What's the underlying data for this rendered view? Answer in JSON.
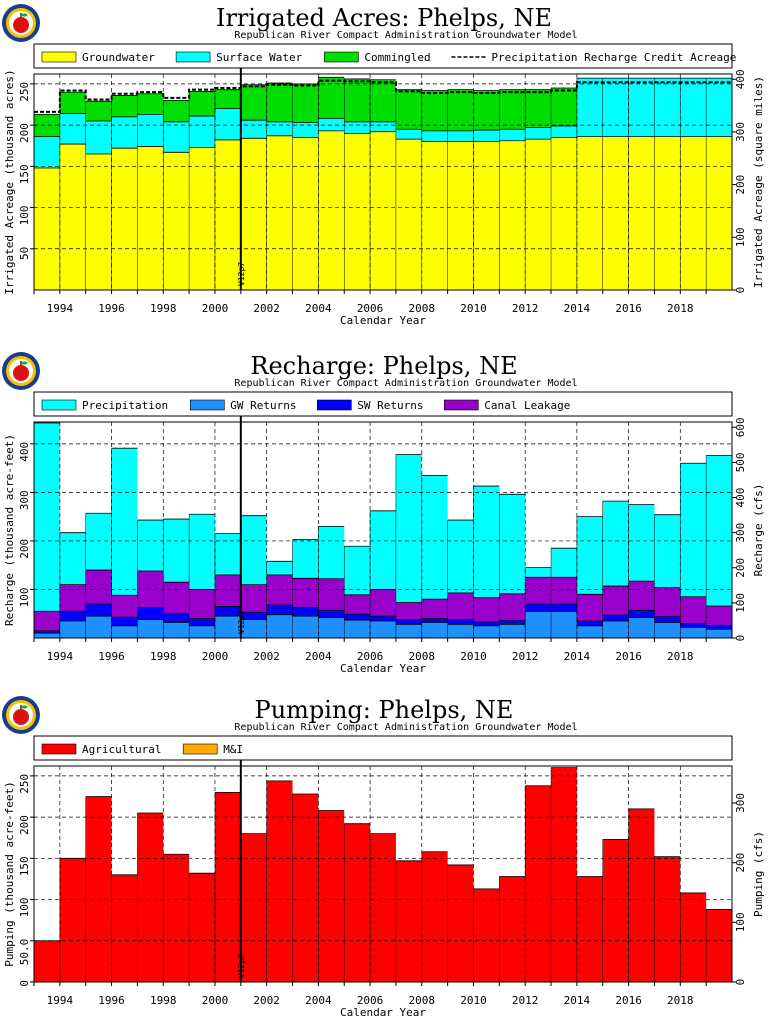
{
  "chart_data": [
    {
      "type": "area",
      "title": "Irrigated Acres: Phelps, NE",
      "subtitle": "Republican River Compact Administration Groundwater Model",
      "xlabel": "Calendar Year",
      "ylabel": "Irrigated Acreage (thousand acres)",
      "y2label": "Irrigated Acreage (square miles)",
      "xlim": [
        1992.5,
        2019.5
      ],
      "ylim": [
        0,
        262
      ],
      "y2lim": [
        0,
        410
      ],
      "yticks": [
        "50",
        "100",
        "150",
        "200",
        "250"
      ],
      "y2ticks": [
        "0",
        "100",
        "200",
        "300",
        "400"
      ],
      "xticks": [
        "1994",
        "1996",
        "1998",
        "2000",
        "2002",
        "2004",
        "2006",
        "2008",
        "2010",
        "2012",
        "2014",
        "2016",
        "2018"
      ],
      "legend_position": "top",
      "stacked": true,
      "years": [
        1993,
        1994,
        1995,
        1996,
        1997,
        1998,
        1999,
        2000,
        2001,
        2002,
        2003,
        2004,
        2005,
        2006,
        2007,
        2008,
        2009,
        2010,
        2011,
        2012,
        2013,
        2014,
        2015,
        2016,
        2017,
        2018,
        2019
      ],
      "series": [
        {
          "name": "Groundwater",
          "color": "#ffff00",
          "values": [
            148,
            177,
            165,
            172,
            174,
            167,
            173,
            182,
            184,
            187,
            185,
            193,
            190,
            192,
            183,
            180,
            180,
            180,
            181,
            183,
            185,
            186,
            186,
            186,
            186,
            186,
            186
          ]
        },
        {
          "name": "Surface Water",
          "color": "#00ffff",
          "values": [
            38,
            37,
            40,
            38,
            39,
            37,
            38,
            38,
            22,
            17,
            18,
            15,
            14,
            12,
            12,
            13,
            13,
            14,
            14,
            14,
            14,
            71,
            71,
            71,
            71,
            71,
            71
          ]
        },
        {
          "name": "Commingled",
          "color": "#00dd00",
          "values": [
            27,
            26,
            24,
            26,
            25,
            26,
            30,
            23,
            43,
            47,
            47,
            50,
            52,
            51,
            48,
            49,
            50,
            48,
            48,
            46,
            46,
            0,
            0,
            0,
            0,
            0,
            0
          ]
        }
      ],
      "reference_line": {
        "name": "Precipitation Recharge Credit Acreage",
        "style": "dashed",
        "values": [
          216,
          242,
          231,
          238,
          240,
          233,
          243,
          245,
          247,
          249,
          248,
          254,
          253,
          252,
          241,
          239,
          240,
          239,
          240,
          240,
          242,
          252,
          252,
          252,
          252,
          252,
          252
        ]
      },
      "marker": {
        "x": 2000.5,
        "label": "V12p7"
      }
    },
    {
      "type": "bar",
      "title": "Recharge: Phelps, NE",
      "subtitle": "Republican River Compact Administration Groundwater Model",
      "xlabel": "Calendar Year",
      "ylabel": "Recharge (thousand acre-feet)",
      "y2label": "Recharge (cfs)",
      "xlim": [
        1992.5,
        2019.5
      ],
      "ylim": [
        0,
        445
      ],
      "y2lim": [
        0,
        615
      ],
      "yticks": [
        "100",
        "200",
        "300",
        "400"
      ],
      "y2ticks": [
        "0",
        "100",
        "200",
        "300",
        "400",
        "500",
        "600"
      ],
      "xticks": [
        "1994",
        "1996",
        "1998",
        "2000",
        "2002",
        "2004",
        "2006",
        "2008",
        "2010",
        "2012",
        "2014",
        "2016",
        "2018"
      ],
      "legend_position": "top",
      "stacked": true,
      "years": [
        1993,
        1994,
        1995,
        1996,
        1997,
        1998,
        1999,
        2000,
        2001,
        2002,
        2003,
        2004,
        2005,
        2006,
        2007,
        2008,
        2009,
        2010,
        2011,
        2012,
        2013,
        2014,
        2015,
        2016,
        2017,
        2018,
        2019
      ],
      "series": [
        {
          "name": "GW Returns",
          "color": "#1e90ff",
          "values": [
            10,
            35,
            45,
            25,
            38,
            32,
            25,
            45,
            38,
            48,
            45,
            42,
            37,
            35,
            28,
            32,
            28,
            25,
            28,
            55,
            55,
            25,
            35,
            42,
            32,
            22,
            18
          ]
        },
        {
          "name": "SW Returns",
          "color": "#0000ff",
          "values": [
            5,
            20,
            25,
            18,
            25,
            18,
            15,
            20,
            15,
            20,
            18,
            15,
            12,
            10,
            10,
            8,
            10,
            8,
            8,
            15,
            15,
            10,
            12,
            15,
            12,
            8,
            8
          ]
        },
        {
          "name": "Canal Leakage",
          "color": "#9900cc",
          "values": [
            40,
            55,
            70,
            45,
            75,
            65,
            60,
            65,
            57,
            62,
            60,
            65,
            40,
            55,
            35,
            40,
            55,
            50,
            55,
            55,
            55,
            55,
            60,
            60,
            60,
            55,
            40
          ]
        },
        {
          "name": "Precipitation",
          "color": "#00ffff",
          "values": [
            388,
            107,
            117,
            303,
            105,
            130,
            155,
            85,
            142,
            28,
            80,
            108,
            100,
            162,
            305,
            255,
            150,
            230,
            205,
            20,
            60,
            160,
            175,
            158,
            150,
            275,
            310
          ]
        }
      ],
      "marker": {
        "x": 2000.5,
        "label": "V12p7"
      }
    },
    {
      "type": "bar",
      "title": "Pumping: Phelps, NE",
      "subtitle": "Republican River Compact Administration Groundwater Model",
      "xlabel": "Calendar Year",
      "ylabel": "Pumping (thousand acre-feet)",
      "y2label": "Pumping (cfs)",
      "xlim": [
        1992.5,
        2019.5
      ],
      "ylim": [
        0,
        262
      ],
      "y2lim": [
        0,
        362
      ],
      "yticks": [
        "0",
        "50.0",
        "100",
        "150",
        "200",
        "250"
      ],
      "y2ticks": [
        "0",
        "100",
        "200",
        "300"
      ],
      "xticks": [
        "1994",
        "1996",
        "1998",
        "2000",
        "2002",
        "2004",
        "2006",
        "2008",
        "2010",
        "2012",
        "2014",
        "2016",
        "2018"
      ],
      "legend_position": "top",
      "stacked": true,
      "years": [
        1993,
        1994,
        1995,
        1996,
        1997,
        1998,
        1999,
        2000,
        2001,
        2002,
        2003,
        2004,
        2005,
        2006,
        2007,
        2008,
        2009,
        2010,
        2011,
        2012,
        2013,
        2014,
        2015,
        2016,
        2017,
        2018,
        2019
      ],
      "series": [
        {
          "name": "Agricultural",
          "color": "#ff0000",
          "values": [
            50,
            150,
            225,
            130,
            205,
            155,
            132,
            230,
            180,
            244,
            228,
            208,
            192,
            180,
            147,
            158,
            142,
            113,
            128,
            238,
            260,
            128,
            173,
            210,
            152,
            108,
            88
          ]
        },
        {
          "name": "M&I",
          "color": "#ffaa00",
          "values": [
            0,
            0,
            0,
            0,
            0,
            0,
            0,
            0,
            0,
            0,
            0,
            0,
            0,
            0,
            0,
            0,
            0,
            0,
            0,
            0,
            0,
            0,
            0,
            0,
            0,
            0,
            0
          ]
        }
      ],
      "marker": {
        "x": 2000.5,
        "label": "V12p7"
      }
    }
  ]
}
